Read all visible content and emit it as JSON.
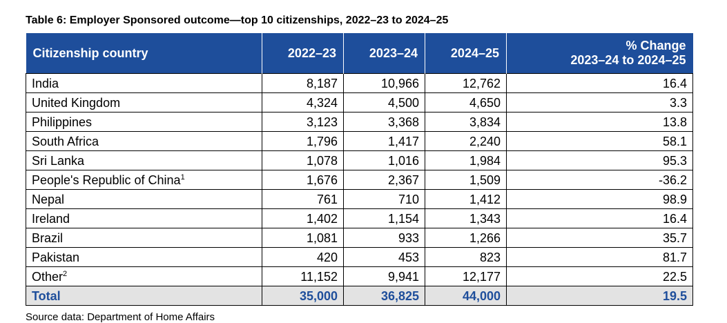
{
  "title": "Table 6: Employer Sponsored outcome—top 10 citizenships, 2022–23 to 2024–25",
  "header": {
    "country": "Citizenship country",
    "y1": "2022–23",
    "y2": "2023–24",
    "y3": "2024–25",
    "change_line1": "% Change",
    "change_line2": "2023–24 to 2024–25"
  },
  "rows": [
    {
      "country": "India",
      "sup": "",
      "y1": "8,187",
      "y2": "10,966",
      "y3": "12,762",
      "change": "16.4"
    },
    {
      "country": "United Kingdom",
      "sup": "",
      "y1": "4,324",
      "y2": "4,500",
      "y3": "4,650",
      "change": "3.3"
    },
    {
      "country": "Philippines",
      "sup": "",
      "y1": "3,123",
      "y2": "3,368",
      "y3": "3,834",
      "change": "13.8"
    },
    {
      "country": "South Africa",
      "sup": "",
      "y1": "1,796",
      "y2": "1,417",
      "y3": "2,240",
      "change": "58.1"
    },
    {
      "country": "Sri Lanka",
      "sup": "",
      "y1": "1,078",
      "y2": "1,016",
      "y3": "1,984",
      "change": "95.3"
    },
    {
      "country": "People's Republic of China",
      "sup": "1",
      "y1": "1,676",
      "y2": "2,367",
      "y3": "1,509",
      "change": "-36.2"
    },
    {
      "country": "Nepal",
      "sup": "",
      "y1": "761",
      "y2": "710",
      "y3": "1,412",
      "change": "98.9"
    },
    {
      "country": "Ireland",
      "sup": "",
      "y1": "1,402",
      "y2": "1,154",
      "y3": "1,343",
      "change": "16.4"
    },
    {
      "country": "Brazil",
      "sup": "",
      "y1": "1,081",
      "y2": "933",
      "y3": "1,266",
      "change": "35.7"
    },
    {
      "country": "Pakistan",
      "sup": "",
      "y1": "420",
      "y2": "453",
      "y3": "823",
      "change": "81.7"
    },
    {
      "country": "Other",
      "sup": "2",
      "y1": "11,152",
      "y2": "9,941",
      "y3": "12,177",
      "change": "22.5"
    }
  ],
  "total": {
    "country": "Total",
    "y1": "35,000",
    "y2": "36,825",
    "y3": "44,000",
    "change": "19.5"
  },
  "source": "Source data: Department of Home Affairs",
  "colors": {
    "header_bg": "#1e4e9b",
    "header_text": "#ffffff",
    "total_bg": "#e3e3e3",
    "total_text": "#1e4e9b"
  }
}
